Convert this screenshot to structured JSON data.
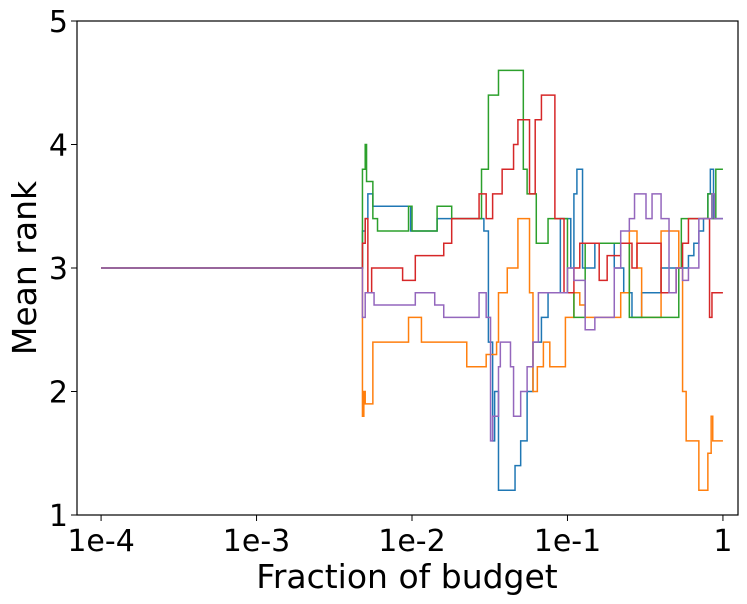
{
  "chart_data": {
    "type": "line",
    "title": "",
    "xlabel": "Fraction of budget",
    "ylabel": "Mean rank",
    "xscale": "log",
    "xlim": [
      7e-05,
      1.25
    ],
    "ylim": [
      1,
      5
    ],
    "grid": false,
    "legend": "none",
    "xticks": [
      {
        "value": 0.0001,
        "label": "1e-4"
      },
      {
        "value": 0.001,
        "label": "1e-3"
      },
      {
        "value": 0.01,
        "label": "1e-2"
      },
      {
        "value": 0.1,
        "label": "1e-1"
      },
      {
        "value": 1,
        "label": "1"
      }
    ],
    "yticks": [
      {
        "value": 1,
        "label": "1"
      },
      {
        "value": 2,
        "label": "2"
      },
      {
        "value": 3,
        "label": "3"
      },
      {
        "value": 4,
        "label": "4"
      },
      {
        "value": 5,
        "label": "5"
      }
    ],
    "series": [
      {
        "name": "series-blue",
        "color": "#1f77b4",
        "points": [
          [
            0.0001,
            3.0
          ],
          [
            0.0047,
            3.0
          ],
          [
            0.0048,
            3.3
          ],
          [
            0.005,
            3.4
          ],
          [
            0.0052,
            3.6
          ],
          [
            0.0056,
            3.5
          ],
          [
            0.0075,
            3.5
          ],
          [
            0.0095,
            3.5
          ],
          [
            0.0098,
            3.3
          ],
          [
            0.012,
            3.3
          ],
          [
            0.014,
            3.3
          ],
          [
            0.0145,
            3.4
          ],
          [
            0.02,
            3.4
          ],
          [
            0.027,
            3.4
          ],
          [
            0.029,
            3.3
          ],
          [
            0.031,
            2.4
          ],
          [
            0.033,
            1.6
          ],
          [
            0.034,
            2.0
          ],
          [
            0.036,
            1.2
          ],
          [
            0.04,
            1.2
          ],
          [
            0.045,
            1.2
          ],
          [
            0.046,
            1.4
          ],
          [
            0.05,
            1.6
          ],
          [
            0.055,
            2.0
          ],
          [
            0.06,
            2.4
          ],
          [
            0.068,
            2.6
          ],
          [
            0.075,
            2.8
          ],
          [
            0.085,
            2.8
          ],
          [
            0.09,
            3.4
          ],
          [
            0.1,
            3.4
          ],
          [
            0.105,
            3.0
          ],
          [
            0.11,
            3.6
          ],
          [
            0.115,
            3.8
          ],
          [
            0.125,
            3.0
          ],
          [
            0.15,
            3.2
          ],
          [
            0.2,
            3.0
          ],
          [
            0.23,
            2.8
          ],
          [
            0.26,
            2.6
          ],
          [
            0.3,
            2.8
          ],
          [
            0.4,
            3.0
          ],
          [
            0.5,
            3.0
          ],
          [
            0.6,
            3.1
          ],
          [
            0.65,
            3.2
          ],
          [
            0.7,
            3.3
          ],
          [
            0.75,
            3.4
          ],
          [
            0.8,
            3.6
          ],
          [
            0.83,
            3.8
          ],
          [
            0.87,
            3.4
          ],
          [
            1.0,
            3.4
          ]
        ]
      },
      {
        "name": "series-orange",
        "color": "#ff7f0e",
        "points": [
          [
            0.0001,
            3.0
          ],
          [
            0.0047,
            3.0
          ],
          [
            0.0048,
            1.8
          ],
          [
            0.0049,
            2.0
          ],
          [
            0.005,
            1.9
          ],
          [
            0.0054,
            1.9
          ],
          [
            0.0056,
            2.4
          ],
          [
            0.007,
            2.4
          ],
          [
            0.009,
            2.4
          ],
          [
            0.0095,
            2.6
          ],
          [
            0.011,
            2.6
          ],
          [
            0.0115,
            2.4
          ],
          [
            0.016,
            2.4
          ],
          [
            0.022,
            2.4
          ],
          [
            0.0225,
            2.2
          ],
          [
            0.028,
            2.2
          ],
          [
            0.03,
            2.3
          ],
          [
            0.035,
            2.4
          ],
          [
            0.036,
            2.8
          ],
          [
            0.04,
            2.8
          ],
          [
            0.041,
            3.0
          ],
          [
            0.046,
            3.0
          ],
          [
            0.048,
            3.4
          ],
          [
            0.055,
            3.4
          ],
          [
            0.057,
            2.8
          ],
          [
            0.06,
            2.0
          ],
          [
            0.064,
            2.2
          ],
          [
            0.068,
            2.2
          ],
          [
            0.07,
            2.4
          ],
          [
            0.075,
            2.4
          ],
          [
            0.077,
            2.2
          ],
          [
            0.095,
            2.2
          ],
          [
            0.097,
            2.6
          ],
          [
            0.11,
            2.8
          ],
          [
            0.12,
            2.7
          ],
          [
            0.13,
            2.6
          ],
          [
            0.16,
            2.6
          ],
          [
            0.2,
            2.6
          ],
          [
            0.22,
            2.8
          ],
          [
            0.25,
            3.3
          ],
          [
            0.28,
            3.0
          ],
          [
            0.3,
            2.6
          ],
          [
            0.35,
            2.6
          ],
          [
            0.4,
            3.3
          ],
          [
            0.5,
            3.3
          ],
          [
            0.52,
            3.0
          ],
          [
            0.55,
            2.0
          ],
          [
            0.58,
            1.6
          ],
          [
            0.68,
            1.6
          ],
          [
            0.7,
            1.2
          ],
          [
            0.78,
            1.2
          ],
          [
            0.8,
            1.5
          ],
          [
            0.84,
            1.8
          ],
          [
            0.86,
            1.6
          ],
          [
            1.0,
            1.6
          ]
        ]
      },
      {
        "name": "series-green",
        "color": "#2ca02c",
        "points": [
          [
            0.0001,
            3.0
          ],
          [
            0.0047,
            3.0
          ],
          [
            0.0048,
            3.8
          ],
          [
            0.005,
            4.0
          ],
          [
            0.0051,
            3.7
          ],
          [
            0.0055,
            3.7
          ],
          [
            0.0056,
            3.4
          ],
          [
            0.006,
            3.3
          ],
          [
            0.009,
            3.3
          ],
          [
            0.0095,
            3.5
          ],
          [
            0.01,
            3.3
          ],
          [
            0.014,
            3.3
          ],
          [
            0.0145,
            3.5
          ],
          [
            0.018,
            3.4
          ],
          [
            0.025,
            3.4
          ],
          [
            0.028,
            3.8
          ],
          [
            0.031,
            4.4
          ],
          [
            0.036,
            4.6
          ],
          [
            0.04,
            4.6
          ],
          [
            0.048,
            4.6
          ],
          [
            0.052,
            3.8
          ],
          [
            0.055,
            3.6
          ],
          [
            0.063,
            3.2
          ],
          [
            0.07,
            3.2
          ],
          [
            0.075,
            3.4
          ],
          [
            0.09,
            3.4
          ],
          [
            0.1,
            2.8
          ],
          [
            0.11,
            2.6
          ],
          [
            0.13,
            3.2
          ],
          [
            0.2,
            3.2
          ],
          [
            0.25,
            2.6
          ],
          [
            0.35,
            2.6
          ],
          [
            0.5,
            2.6
          ],
          [
            0.52,
            3.0
          ],
          [
            0.54,
            3.4
          ],
          [
            0.6,
            3.4
          ],
          [
            0.75,
            3.4
          ],
          [
            0.8,
            3.6
          ],
          [
            0.85,
            3.4
          ],
          [
            0.9,
            3.8
          ],
          [
            1.0,
            3.8
          ]
        ]
      },
      {
        "name": "series-red",
        "color": "#d62728",
        "points": [
          [
            0.0001,
            3.0
          ],
          [
            0.0047,
            3.0
          ],
          [
            0.0048,
            3.2
          ],
          [
            0.005,
            3.4
          ],
          [
            0.0052,
            2.8
          ],
          [
            0.0055,
            3.0
          ],
          [
            0.006,
            3.0
          ],
          [
            0.0085,
            3.0
          ],
          [
            0.0087,
            2.9
          ],
          [
            0.01,
            2.9
          ],
          [
            0.0105,
            3.1
          ],
          [
            0.014,
            3.1
          ],
          [
            0.016,
            3.2
          ],
          [
            0.018,
            3.4
          ],
          [
            0.025,
            3.4
          ],
          [
            0.027,
            3.6
          ],
          [
            0.03,
            3.4
          ],
          [
            0.033,
            3.6
          ],
          [
            0.038,
            3.8
          ],
          [
            0.043,
            3.8
          ],
          [
            0.045,
            4.0
          ],
          [
            0.048,
            4.2
          ],
          [
            0.055,
            4.2
          ],
          [
            0.057,
            3.6
          ],
          [
            0.062,
            4.2
          ],
          [
            0.068,
            4.4
          ],
          [
            0.08,
            4.4
          ],
          [
            0.083,
            3.4
          ],
          [
            0.095,
            2.8
          ],
          [
            0.11,
            3.0
          ],
          [
            0.12,
            3.2
          ],
          [
            0.15,
            3.2
          ],
          [
            0.16,
            2.9
          ],
          [
            0.18,
            3.1
          ],
          [
            0.22,
            3.2
          ],
          [
            0.26,
            3.0
          ],
          [
            0.28,
            3.2
          ],
          [
            0.35,
            3.2
          ],
          [
            0.4,
            2.8
          ],
          [
            0.45,
            2.8
          ],
          [
            0.5,
            3.0
          ],
          [
            0.55,
            3.2
          ],
          [
            0.6,
            3.4
          ],
          [
            0.75,
            3.4
          ],
          [
            0.8,
            3.4
          ],
          [
            0.82,
            2.6
          ],
          [
            0.85,
            2.8
          ],
          [
            1.0,
            2.8
          ]
        ]
      },
      {
        "name": "series-purple",
        "color": "#9467bd",
        "points": [
          [
            0.0001,
            3.0
          ],
          [
            0.0047,
            3.0
          ],
          [
            0.0048,
            2.6
          ],
          [
            0.005,
            2.8
          ],
          [
            0.0055,
            2.8
          ],
          [
            0.0057,
            2.7
          ],
          [
            0.009,
            2.7
          ],
          [
            0.01,
            2.7
          ],
          [
            0.0105,
            2.8
          ],
          [
            0.014,
            2.7
          ],
          [
            0.016,
            2.6
          ],
          [
            0.025,
            2.6
          ],
          [
            0.027,
            2.8
          ],
          [
            0.03,
            2.6
          ],
          [
            0.032,
            1.6
          ],
          [
            0.033,
            1.8
          ],
          [
            0.036,
            2.2
          ],
          [
            0.037,
            2.4
          ],
          [
            0.042,
            2.4
          ],
          [
            0.043,
            2.2
          ],
          [
            0.045,
            1.8
          ],
          [
            0.05,
            2.0
          ],
          [
            0.055,
            2.2
          ],
          [
            0.06,
            2.4
          ],
          [
            0.065,
            2.8
          ],
          [
            0.07,
            2.8
          ],
          [
            0.09,
            2.8
          ],
          [
            0.1,
            3.0
          ],
          [
            0.11,
            2.9
          ],
          [
            0.13,
            2.5
          ],
          [
            0.15,
            2.6
          ],
          [
            0.18,
            2.6
          ],
          [
            0.2,
            3.0
          ],
          [
            0.22,
            3.3
          ],
          [
            0.25,
            3.4
          ],
          [
            0.27,
            3.6
          ],
          [
            0.3,
            3.6
          ],
          [
            0.32,
            3.4
          ],
          [
            0.35,
            3.6
          ],
          [
            0.4,
            3.4
          ],
          [
            0.45,
            2.8
          ],
          [
            0.5,
            3.0
          ],
          [
            0.55,
            2.9
          ],
          [
            0.6,
            3.0
          ],
          [
            0.7,
            3.4
          ],
          [
            0.8,
            3.4
          ],
          [
            0.85,
            3.6
          ],
          [
            0.88,
            3.4
          ],
          [
            1.0,
            3.4
          ]
        ]
      }
    ]
  }
}
